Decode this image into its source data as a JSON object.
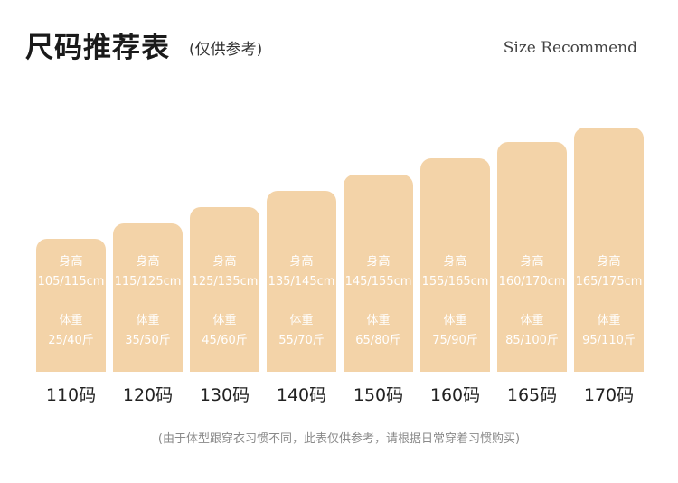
{
  "title": "尺码推荐表",
  "subtitle": "(仅供参考)",
  "en_title": "Size Recommend",
  "height_label": "身高",
  "weight_label": "体重",
  "sizes": [
    {
      "size": "110码",
      "height": "105/115cm",
      "weight": "25/40斤",
      "level": 1
    },
    {
      "size": "120码",
      "height": "115/125cm",
      "weight": "35/50斤",
      "level": 2
    },
    {
      "size": "130码",
      "height": "125/135cm",
      "weight": "45/60斤",
      "level": 3
    },
    {
      "size": "140码",
      "height": "135/145cm",
      "weight": "55/70斤",
      "level": 4
    },
    {
      "size": "150码",
      "height": "145/155cm",
      "weight": "65/80斤",
      "level": 5
    },
    {
      "size": "160码",
      "height": "155/165cm",
      "weight": "75/90斤",
      "level": 6
    },
    {
      "size": "165码",
      "height": "160/170cm",
      "weight": "85/100斤",
      "level": 7
    },
    {
      "size": "170码",
      "height": "165/175cm",
      "weight": "95/110斤",
      "level": 8
    }
  ],
  "note": "(由于体型跟穿衣习惯不同，此表仅供参考，请根据日常穿着习惯购买)",
  "colors": {
    "bar": "#f3d3a8",
    "bar_text": "#ffffff"
  }
}
